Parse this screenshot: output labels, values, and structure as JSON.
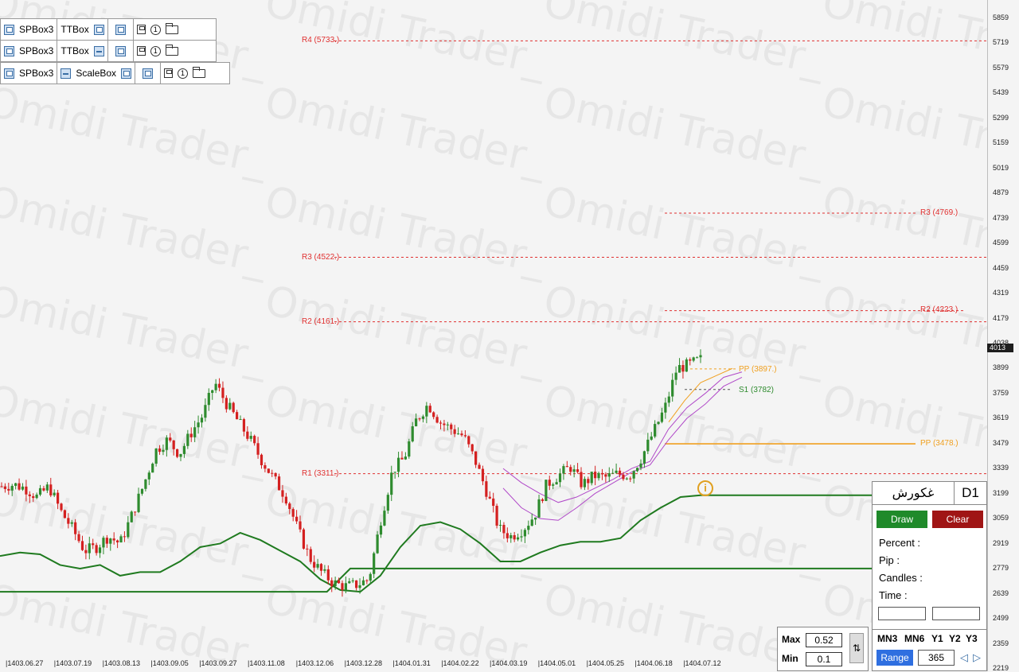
{
  "toolbar": {
    "rows": [
      {
        "a": "SPBox3",
        "b": "TTBox"
      },
      {
        "a": "SPBox3",
        "b": "TTBox"
      },
      {
        "a": "SPBox3",
        "b": "ScaleBox"
      }
    ],
    "info_glyph": "i"
  },
  "watermark": "Omidi Trader_",
  "price_axis": {
    "ticks": [
      "5859",
      "5719",
      "5579",
      "5439",
      "5299",
      "5159",
      "5019",
      "4879",
      "4739",
      "4599",
      "4459",
      "4319",
      "4179",
      "4038",
      "3899",
      "3759",
      "3619",
      "3479",
      "3339",
      "3199",
      "3059",
      "2919",
      "2779",
      "2639",
      "2499",
      "2359",
      "2219"
    ],
    "current_price": "4013"
  },
  "date_axis": {
    "ticks": [
      "1403.06.27",
      "1403.07.19",
      "1403.08.13",
      "1403.09.05",
      "1403.09.27",
      "1403.11.08",
      "1403.12.06",
      "1403.12.28",
      "1404.01.31",
      "1404.02.22",
      "1404.03.19",
      "1404.05.01",
      "1404.05.25",
      "1404.06.18",
      "1404.07.12"
    ]
  },
  "levels": {
    "r4_left": "R4 (5733.)",
    "r3_left": "R3 (4522.)",
    "r2_left": "R2 (4161.)",
    "r1_left": "R1 (3311.)",
    "r3_right": "R3 (4769.)",
    "r2_right": "R2 (4223.)",
    "pp_right": "PP (3478.)",
    "pp_short": "PP (3897.)",
    "s1_short": "S1 (3782)"
  },
  "colors": {
    "bull": "#2e8b2e",
    "bear": "#d42020",
    "resistance": "#e03030",
    "pivot": "#f0a020",
    "support": "#2e8b2e",
    "band": "#b048c8",
    "trend": "#1f7a1f"
  },
  "panel": {
    "symbol": "غکورش",
    "timeframe": "D1",
    "draw": "Draw",
    "clear": "Clear",
    "percent": "Percent :",
    "pip": "Pip :",
    "candles": "Candles :",
    "time": "Time :",
    "tf_buttons": [
      "MN3",
      "MN6",
      "Y1",
      "Y2",
      "Y3"
    ],
    "range": "Range",
    "range_value": "365"
  },
  "maxmin": {
    "max_label": "Max",
    "max_value": "0.52",
    "min_label": "Min",
    "min_value": "0.1",
    "toggle_glyph": "⇅"
  },
  "chart_data": {
    "type": "candlestick",
    "title": "",
    "xlabel": "",
    "ylabel": "",
    "ylim": [
      2219,
      5930
    ],
    "last_price": 4013,
    "pivot_levels": [
      {
        "label": "R4",
        "value": 5733
      },
      {
        "label": "R3",
        "value": 4522
      },
      {
        "label": "R2",
        "value": 4161
      },
      {
        "label": "R1",
        "value": 3311
      },
      {
        "label": "R3",
        "value": 4769
      },
      {
        "label": "R2",
        "value": 4223
      },
      {
        "label": "PP",
        "value": 3478
      },
      {
        "label": "PP",
        "value": 3897
      },
      {
        "label": "S1",
        "value": 3782
      }
    ],
    "price_path": [
      3240,
      3250,
      3230,
      3180,
      3240,
      3100,
      3000,
      2880,
      2900,
      2960,
      2920,
      3080,
      3250,
      3440,
      3500,
      3420,
      3540,
      3640,
      3820,
      3700,
      3600,
      3500,
      3380,
      3280,
      3180,
      3000,
      2840,
      2760,
      2700,
      2680,
      2690,
      2720,
      3050,
      3330,
      3400,
      3610,
      3700,
      3600,
      3560,
      3520,
      3380,
      3200,
      3000,
      2960,
      3000,
      3080,
      3250,
      3300,
      3350,
      3250,
      3300,
      3290,
      3310,
      3300,
      3400,
      3540,
      3680,
      3900,
      3920,
      3950
    ],
    "trend_line": [
      2850,
      2870,
      2860,
      2800,
      2780,
      2800,
      2740,
      2760,
      2760,
      2820,
      2900,
      2920,
      2980,
      2940,
      2880,
      2820,
      2720,
      2660,
      2650,
      2740,
      2900,
      3020,
      3040,
      3000,
      2920,
      2820,
      2820,
      2870,
      2910,
      2930,
      2930,
      2950,
      3050,
      3120,
      3180,
      3190
    ],
    "support_steps": [
      2650,
      2650,
      2650,
      2650,
      2650,
      2650,
      2650,
      2650,
      2650,
      2650,
      2650,
      2650,
      2650,
      2650,
      2650,
      2780,
      2780,
      2780,
      2780,
      2780,
      2780,
      2780,
      2780,
      2780,
      2780,
      2780,
      2780,
      2780,
      2780,
      2780,
      2780
    ]
  }
}
